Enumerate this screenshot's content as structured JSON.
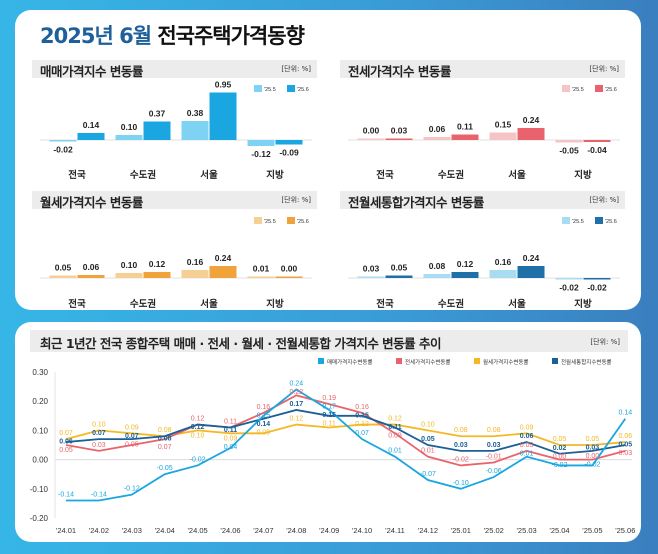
{
  "title": {
    "highlight": "2025년 6월",
    "rest": "전국주택가격동향"
  },
  "unit_label": "[단위: %]",
  "chart_data": [
    {
      "type": "bar",
      "id": "sale",
      "title": "매매가격지수 변동률",
      "categories": [
        "전국",
        "수도권",
        "서울",
        "지방"
      ],
      "series": [
        {
          "name": "'25.5",
          "values": [
            -0.02,
            0.1,
            0.38,
            -0.12
          ],
          "color": "#7fd3f2"
        },
        {
          "name": "'25.6",
          "values": [
            0.14,
            0.37,
            0.95,
            -0.09
          ],
          "color": "#1aa6e0"
        }
      ]
    },
    {
      "type": "bar",
      "id": "jeonse",
      "title": "전세가격지수 변동률",
      "categories": [
        "전국",
        "수도권",
        "서울",
        "지방"
      ],
      "series": [
        {
          "name": "'25.5",
          "values": [
            0.0,
            0.06,
            0.15,
            -0.05
          ],
          "color": "#f6c3c6"
        },
        {
          "name": "'25.6",
          "values": [
            0.03,
            0.11,
            0.24,
            -0.04
          ],
          "color": "#e9636c"
        }
      ]
    },
    {
      "type": "bar",
      "id": "monthly",
      "title": "월세가격지수 변동률",
      "categories": [
        "전국",
        "수도권",
        "서울",
        "지방"
      ],
      "series": [
        {
          "name": "'25.5",
          "values": [
            0.05,
            0.1,
            0.16,
            0.01
          ],
          "color": "#f6cf94"
        },
        {
          "name": "'25.6",
          "values": [
            0.06,
            0.12,
            0.24,
            0.0
          ],
          "color": "#f0a23b"
        }
      ]
    },
    {
      "type": "bar",
      "id": "combined",
      "title": "전월세통합가격지수 변동률",
      "categories": [
        "전국",
        "수도권",
        "서울",
        "지방"
      ],
      "series": [
        {
          "name": "'25.5",
          "values": [
            0.03,
            0.08,
            0.16,
            -0.02
          ],
          "color": "#a9dcf3"
        },
        {
          "name": "'25.6",
          "values": [
            0.05,
            0.12,
            0.24,
            -0.02
          ],
          "color": "#1f6fa8"
        }
      ]
    },
    {
      "type": "line",
      "id": "trend",
      "title": "최근 1년간 전국 종합주택 매매 · 전세 · 월세 · 전월세통합 가격지수 변동률 추이",
      "x": [
        "'24.01",
        "'24.02",
        "'24.03",
        "'24.04",
        "'24.05",
        "'24.06",
        "'24.07",
        "'24.08",
        "'24.09",
        "'24.10",
        "'24.11",
        "'24.12",
        "'25.01",
        "'25.02",
        "'25.03",
        "'25.04",
        "'25.05",
        "'25.06"
      ],
      "ylim": [
        -0.2,
        0.3
      ],
      "yticks": [
        "0.30",
        "0.20",
        "0.10",
        "0.00",
        "-0.10",
        "-0.20"
      ],
      "legend": "top-right",
      "series": [
        {
          "name": "매매가격지수변동률",
          "color": "#1aa6e0",
          "values": [
            -0.14,
            -0.14,
            -0.12,
            -0.05,
            -0.02,
            0.04,
            0.15,
            0.24,
            0.17,
            0.07,
            0.01,
            -0.07,
            -0.1,
            -0.06,
            0.01,
            -0.02,
            -0.02,
            0.14
          ]
        },
        {
          "name": "전세가격지수변동률",
          "color": "#e9636c",
          "values": [
            0.05,
            0.03,
            0.05,
            0.07,
            0.12,
            0.11,
            0.16,
            0.22,
            0.19,
            0.16,
            0.09,
            0.01,
            -0.02,
            -0.01,
            0.03,
            0.0,
            0.0,
            0.03
          ]
        },
        {
          "name": "월세가격지수변동률",
          "color": "#f3b824",
          "values": [
            0.07,
            0.1,
            0.09,
            0.08,
            0.1,
            0.09,
            0.09,
            0.12,
            0.11,
            0.12,
            0.12,
            0.1,
            0.08,
            0.08,
            0.09,
            0.05,
            0.05,
            0.06
          ]
        },
        {
          "name": "전월세통합지수변동률",
          "color": "#1a5f96",
          "values": [
            0.06,
            0.07,
            0.07,
            0.08,
            0.12,
            0.11,
            0.14,
            0.17,
            0.15,
            0.15,
            0.11,
            0.05,
            0.03,
            0.03,
            0.06,
            0.02,
            0.03,
            0.05
          ]
        }
      ]
    }
  ]
}
